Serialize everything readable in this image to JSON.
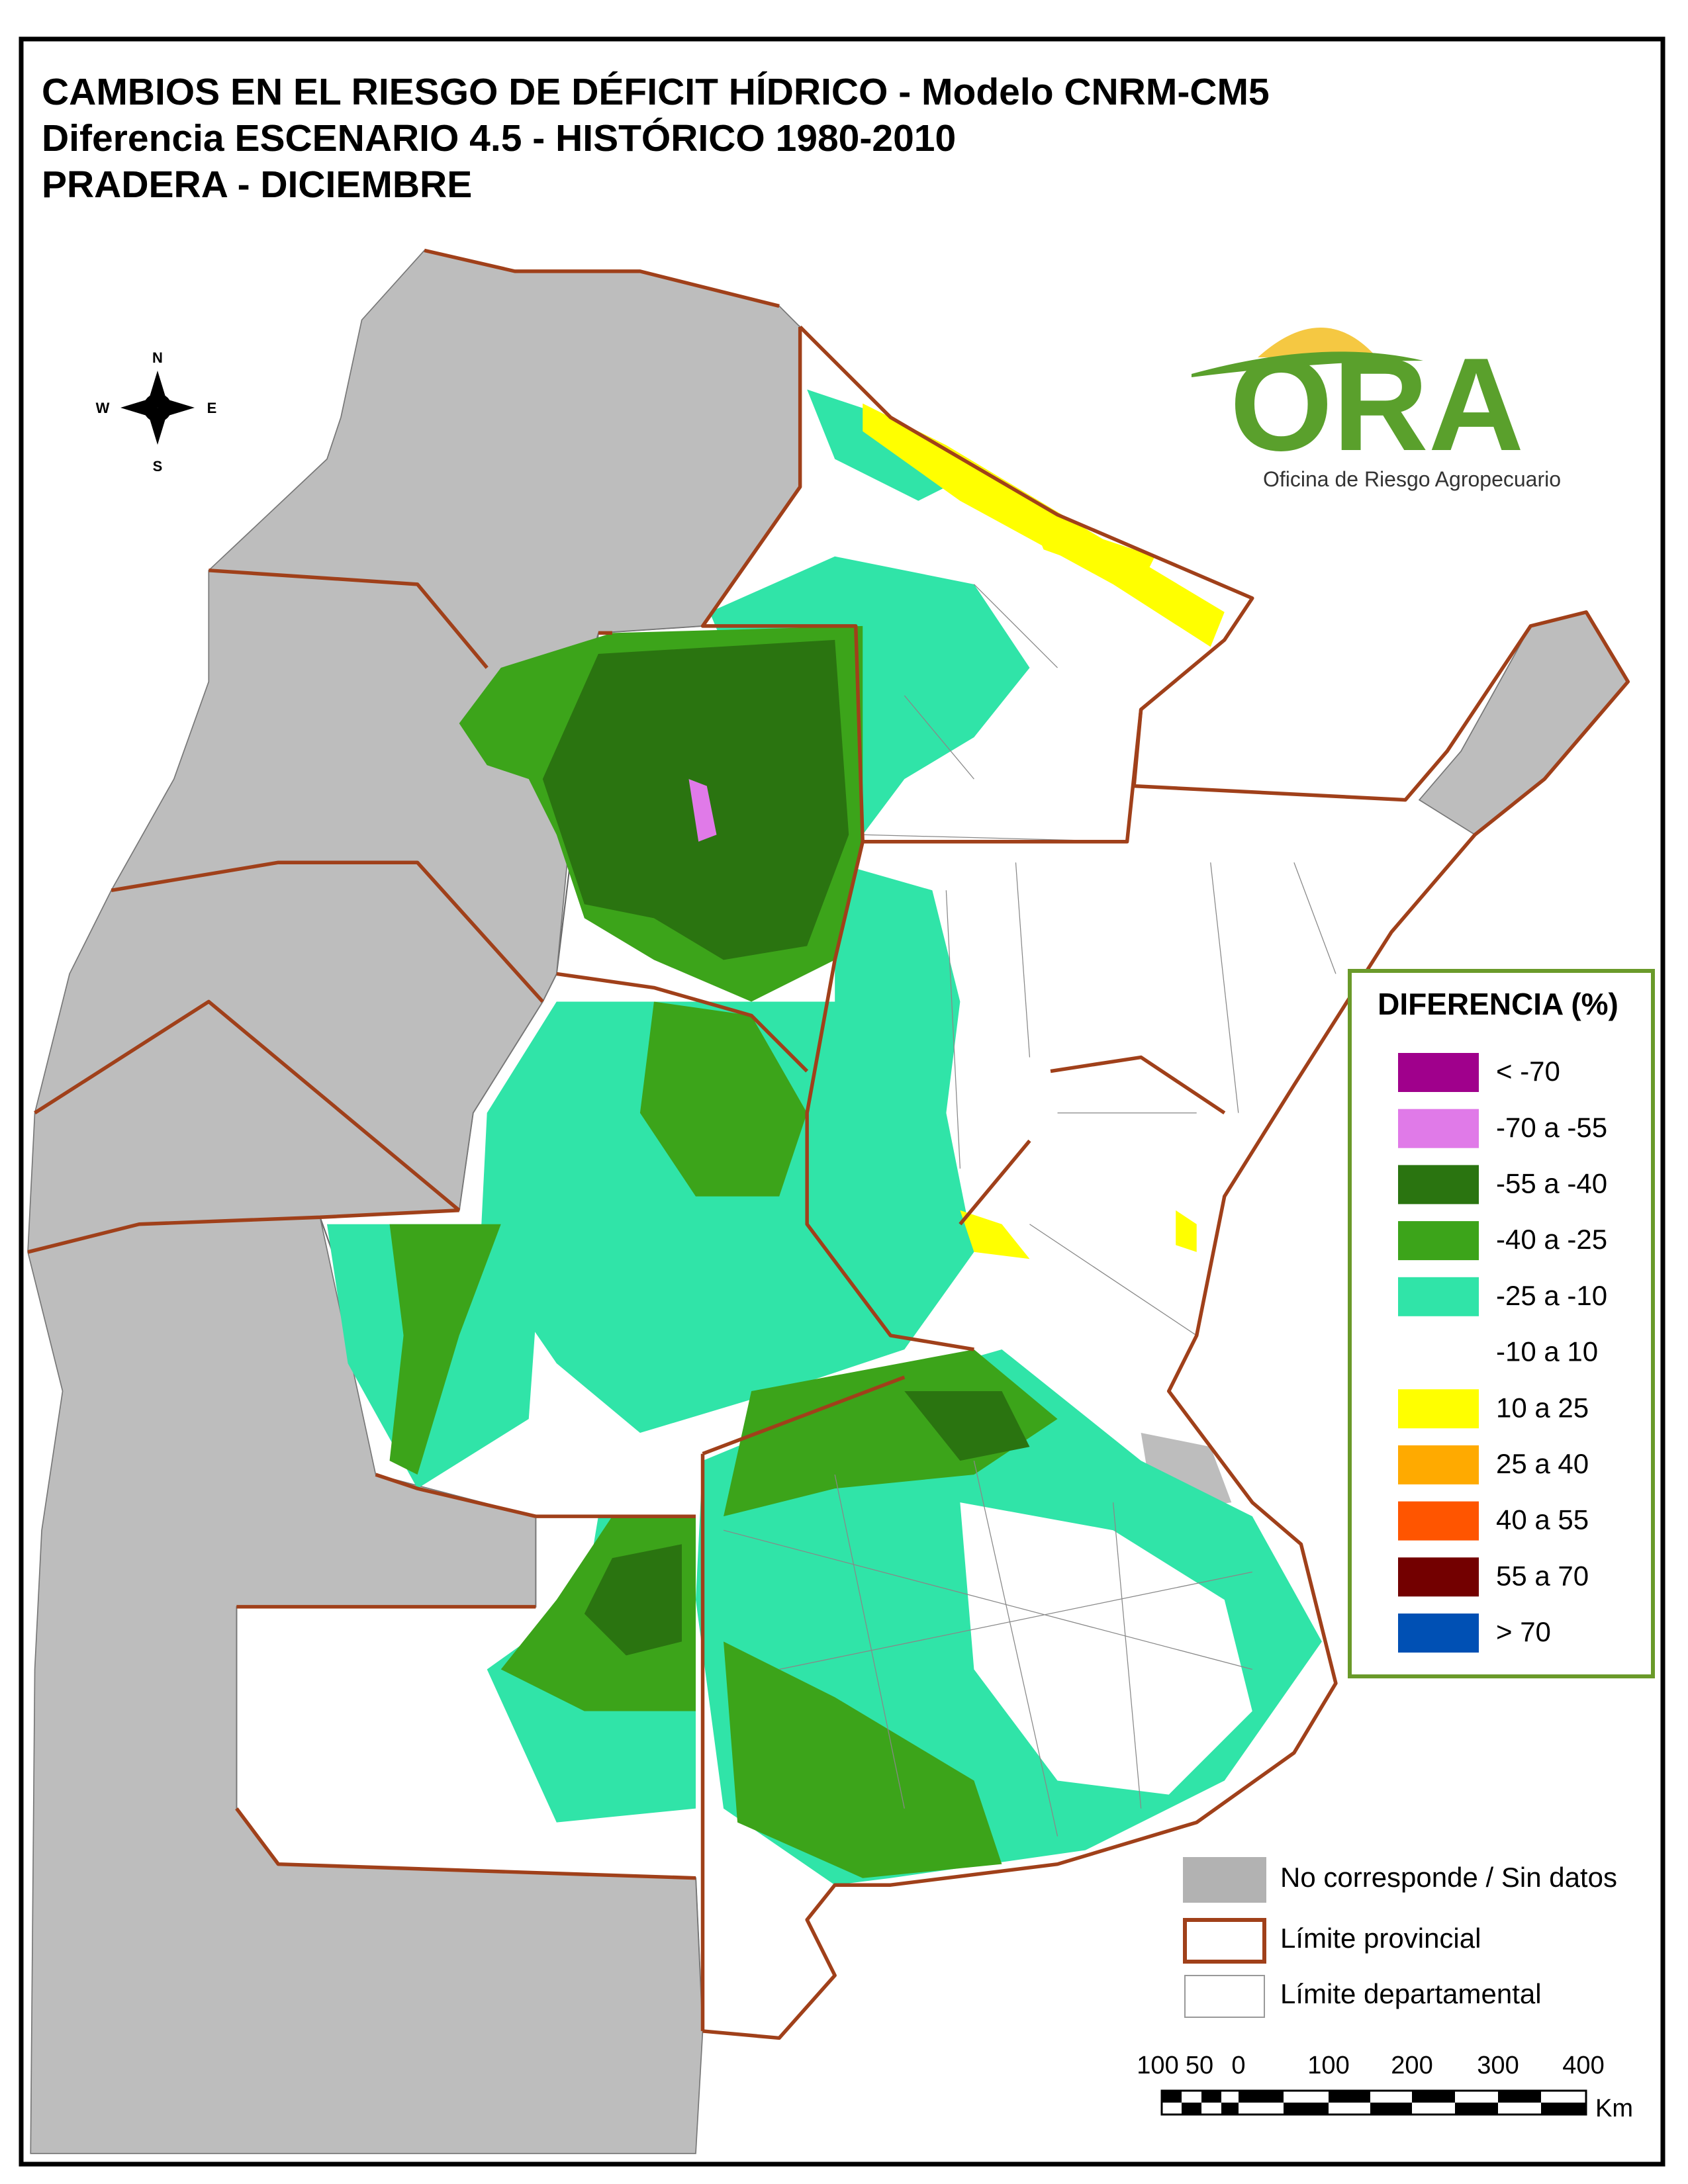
{
  "title": {
    "lines": [
      "CAMBIOS EN EL RIESGO DE DÉFICIT HÍDRICO - Modelo CNRM-CM5",
      "Diferencia ESCENARIO 4.5 - HISTÓRICO 1980-2010",
      "PRADERA - DICIEMBRE"
    ]
  },
  "compass": {
    "n": "N",
    "s": "S",
    "w": "W",
    "e": "E"
  },
  "logo": {
    "name": "ORA",
    "subtitle": "Oficina de Riesgo Agropecuario"
  },
  "legend": {
    "title": "DIFERENCIA (%)",
    "items": [
      {
        "label": "< -70",
        "color": "#a0008c"
      },
      {
        "label": "-70 a -55",
        "color": "#e07ae8"
      },
      {
        "label": "-55 a -40",
        "color": "#2a7410"
      },
      {
        "label": "-40 a -25",
        "color": "#3ca41a"
      },
      {
        "label": "-25 a -10",
        "color": "#30e4a8"
      },
      {
        "label": "-10 a 10",
        "color": "#ffffff"
      },
      {
        "label": "10 a 25",
        "color": "#ffff00"
      },
      {
        "label": "25 a 40",
        "color": "#ffaa00"
      },
      {
        "label": "40 a 55",
        "color": "#ff5500"
      },
      {
        "label": "55 a 70",
        "color": "#730000"
      },
      {
        "label": "> 70",
        "color": "#0050b4"
      }
    ]
  },
  "legend_extra": {
    "items": [
      {
        "label": "No corresponde / Sin datos"
      },
      {
        "label": "Límite provincial"
      },
      {
        "label": "Límite departamental"
      }
    ]
  },
  "scale_bar": {
    "labels": [
      "100",
      "50",
      "0",
      "100",
      "200",
      "300",
      "400"
    ],
    "unit": "Km"
  }
}
